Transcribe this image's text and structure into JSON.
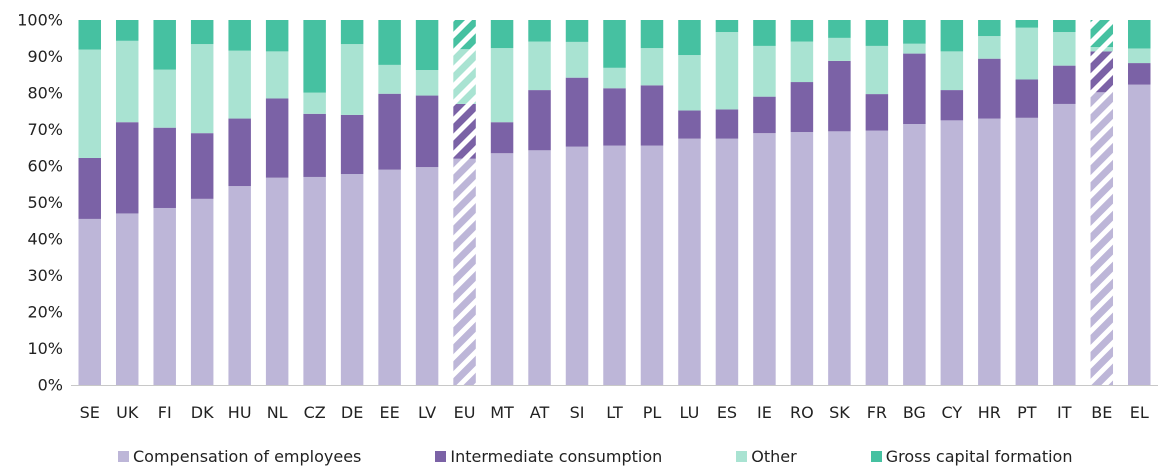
{
  "chart_data": {
    "type": "bar",
    "stacked": true,
    "percent": true,
    "categories": [
      "SE",
      "UK",
      "FI",
      "DK",
      "HU",
      "NL",
      "CZ",
      "DE",
      "EE",
      "LV",
      "EU",
      "MT",
      "AT",
      "SI",
      "LT",
      "PL",
      "LU",
      "ES",
      "IE",
      "RO",
      "SK",
      "FR",
      "BG",
      "CY",
      "HR",
      "PT",
      "IT",
      "BE",
      "EL"
    ],
    "hatched_categories": [
      "EU",
      "BE"
    ],
    "series": [
      {
        "name": "Compensation of employees",
        "color": "#bdb6d8",
        "values": [
          45.5,
          47,
          48.5,
          51,
          54.5,
          56.8,
          57,
          57.8,
          59,
          59.7,
          62,
          63.5,
          64.3,
          65.3,
          65.6,
          65.6,
          67.5,
          67.5,
          69,
          69.3,
          69.5,
          69.7,
          71.5,
          72.5,
          73,
          73.2,
          77,
          80.2,
          82.3
        ]
      },
      {
        "name": "Intermediate consumption",
        "color": "#7b62a6",
        "values": [
          16.7,
          25,
          22,
          18,
          18.5,
          21.7,
          17.3,
          16.2,
          20.8,
          19.6,
          15,
          8.5,
          16.5,
          18.9,
          15.7,
          16.5,
          7.7,
          8,
          10,
          13.7,
          19.3,
          10,
          19.3,
          8.3,
          16.4,
          10.5,
          10.5,
          11.2,
          5.9
        ]
      },
      {
        "name": "Other",
        "color": "#a9e3d2",
        "values": [
          29.7,
          22.3,
          15.9,
          24.4,
          18.6,
          12.9,
          5.8,
          19.4,
          7.9,
          7,
          15,
          20.3,
          13.3,
          9.8,
          5.6,
          10.2,
          15.2,
          21.2,
          13.9,
          11.1,
          6.3,
          13.2,
          2.7,
          10.6,
          6.2,
          14.2,
          9.2,
          1.2,
          4
        ]
      },
      {
        "name": "Gross capital formation",
        "color": "#46c1a1",
        "values": [
          8.1,
          5.7,
          13.6,
          6.6,
          8.4,
          8.6,
          19.9,
          6.6,
          12.3,
          13.7,
          8,
          7.7,
          5.9,
          6,
          13.1,
          7.7,
          9.6,
          3.3,
          7.1,
          5.9,
          4.9,
          7.1,
          6.5,
          8.6,
          4.4,
          2.1,
          3.3,
          7.4,
          7.8
        ]
      }
    ],
    "y_ticks": [
      "0%",
      "10%",
      "20%",
      "30%",
      "40%",
      "50%",
      "60%",
      "70%",
      "80%",
      "90%",
      "100%"
    ],
    "ylim": [
      0,
      100
    ],
    "legend_position": "bottom",
    "grid": false
  }
}
